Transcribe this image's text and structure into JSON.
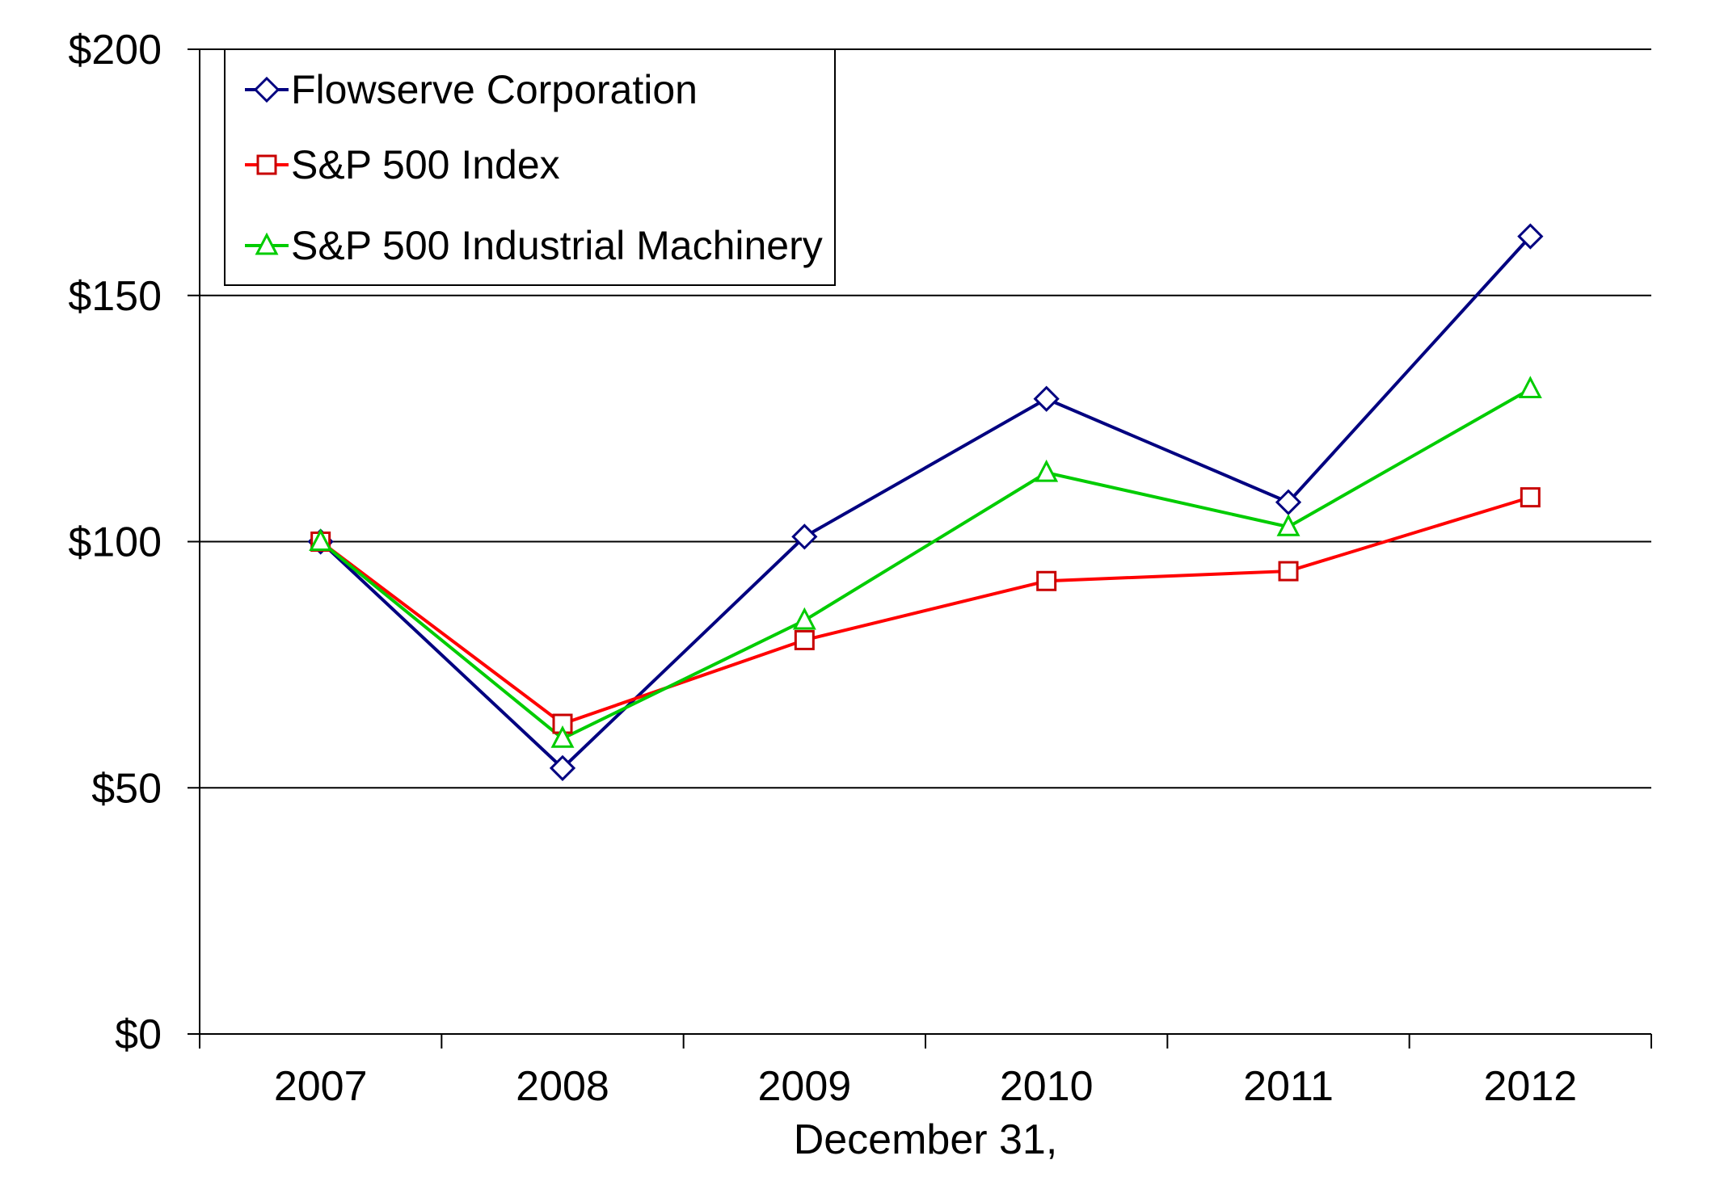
{
  "page": {
    "background": "#FFFFFF",
    "text_color": "#000000",
    "grid_color": "#000000"
  },
  "chart_data": {
    "type": "line",
    "title": "",
    "xlabel": "December 31,",
    "ylabel": "",
    "ylim": [
      0,
      200
    ],
    "grid": "horizontal-only",
    "y_ticks": [
      {
        "value": 0,
        "label": "$0"
      },
      {
        "value": 50,
        "label": "$50"
      },
      {
        "value": 100,
        "label": "$100"
      },
      {
        "value": 150,
        "label": "$150"
      },
      {
        "value": 200,
        "label": "$200"
      }
    ],
    "categories": [
      "2007",
      "2008",
      "2009",
      "2010",
      "2011",
      "2012"
    ],
    "legend": {
      "position": "top-left-inside",
      "border": true,
      "background": "#FFFFFF"
    },
    "series": [
      {
        "name": "Flowserve Corporation",
        "marker": "diamond",
        "line_color": "#000080",
        "marker_color": "#000080",
        "values": [
          100,
          54,
          101,
          129,
          108,
          162
        ]
      },
      {
        "name": "S&P 500 Index",
        "marker": "square",
        "line_color": "#FF0000",
        "marker_color": "#C80000",
        "values": [
          100,
          63,
          80,
          92,
          94,
          109
        ]
      },
      {
        "name": "S&P 500 Industrial Machinery",
        "marker": "triangle",
        "line_color": "#00CC00",
        "marker_color": "#00CC00",
        "values": [
          100,
          60,
          84,
          114,
          103,
          131
        ]
      }
    ]
  }
}
